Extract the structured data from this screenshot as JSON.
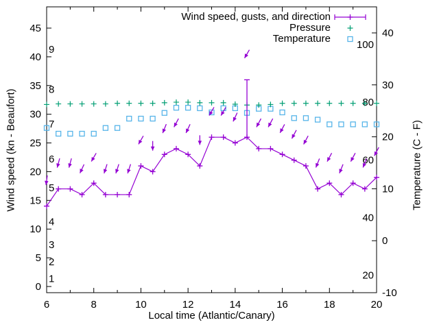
{
  "chart_data": {
    "type": "line",
    "xlabel": "Local time (Atlantic/Canary)",
    "ylabel_left": "Wind speed (kn - Beaufort)",
    "ylabel_right": "Temperature (C - F)",
    "legend_labels": [
      "Wind speed, gusts, and direction",
      "Pressure",
      "Temperature"
    ],
    "legend_position": "top-right-inside",
    "grid": false,
    "background": "#ffffff",
    "colors": {
      "wind": "#9400d3",
      "pressure": "#009e73",
      "temperature": "#56b4e9",
      "axis": "#000000"
    },
    "markers": {
      "wind": "plus-with-line-and-direction-arrows",
      "pressure": "plus",
      "temperature": "open-square"
    },
    "xlim": [
      6,
      20
    ],
    "x_ticks": [
      6,
      8,
      10,
      12,
      14,
      16,
      18,
      20
    ],
    "x_minor_ticks": [
      7,
      9,
      11,
      13,
      15,
      17,
      19
    ],
    "ylim_left_kn": [
      -1.1,
      48.8
    ],
    "y_left_ticks": [
      0,
      5,
      10,
      15,
      20,
      25,
      30,
      35,
      40,
      45
    ],
    "ylim_right_c": [
      -10,
      45
    ],
    "y_right_ticks": [
      -10,
      0,
      10,
      20,
      30,
      40
    ],
    "beaufort_inner_labels": [
      {
        "label": "1",
        "kn": 1.4
      },
      {
        "label": "2",
        "kn": 4.3
      },
      {
        "label": "3",
        "kn": 7.3
      },
      {
        "label": "4",
        "kn": 11.3
      },
      {
        "label": "5",
        "kn": 17.2
      },
      {
        "label": "6",
        "kn": 22.2
      },
      {
        "label": "7",
        "kn": 28.3
      },
      {
        "label": "8",
        "kn": 34.3
      },
      {
        "label": "9",
        "kn": 41.3
      }
    ],
    "fahrenheit_inner_labels": [
      20,
      40,
      60,
      80,
      100
    ],
    "x": [
      6,
      6.5,
      7,
      7.5,
      8,
      8.5,
      9,
      9.5,
      10,
      10.5,
      11,
      11.5,
      12,
      12.5,
      13,
      13.5,
      14,
      14.5,
      15,
      15.5,
      16,
      16.5,
      17,
      17.5,
      18,
      18.5,
      19,
      19.5,
      20
    ],
    "series": [
      {
        "name": "Wind speed, gusts, and direction",
        "axis": "left",
        "wind_kn": [
          14,
          17,
          17,
          16,
          18,
          16,
          16,
          16,
          21,
          20,
          23,
          24,
          23,
          21,
          26,
          26,
          25,
          26,
          24,
          24,
          23,
          22,
          21,
          17,
          18,
          16,
          18,
          17,
          19
        ],
        "gust_kn": [
          14,
          17,
          17,
          16,
          18,
          16,
          16,
          16,
          21,
          20,
          23,
          24,
          23,
          21,
          26,
          26,
          25,
          36,
          24,
          24,
          23,
          22,
          21,
          17,
          18,
          16,
          18,
          17,
          19
        ],
        "arrow_offset_kn": 4.5,
        "arrow_angles_deg_lean_left": [
          8,
          15,
          15,
          25,
          30,
          18,
          18,
          18,
          30,
          0,
          22,
          28,
          25,
          0,
          30,
          30,
          25,
          30,
          28,
          28,
          28,
          28,
          28,
          22,
          28,
          22,
          28,
          22,
          28
        ]
      },
      {
        "name": "Pressure",
        "axis": "left-equivalent-display-level",
        "level_kn_equiv": [
          31.7,
          31.8,
          31.8,
          31.8,
          31.8,
          31.8,
          31.9,
          31.9,
          31.9,
          31.9,
          32.0,
          32.1,
          32.1,
          32.0,
          32.0,
          32.0,
          31.75,
          31.6,
          31.6,
          31.7,
          31.9,
          31.9,
          31.9,
          31.9,
          31.9,
          31.9,
          31.9,
          31.9,
          31.9
        ]
      },
      {
        "name": "Temperature",
        "axis": "right",
        "temp_c": [
          21.7,
          20.6,
          20.6,
          20.6,
          20.6,
          21.7,
          21.7,
          23.5,
          23.5,
          23.5,
          24.6,
          25.6,
          25.6,
          25.5,
          24.7,
          25.5,
          25.5,
          24.6,
          25.4,
          25.4,
          24.7,
          23.6,
          23.6,
          23.3,
          22.4,
          22.4,
          22.4,
          22.4,
          22.4
        ]
      }
    ]
  }
}
